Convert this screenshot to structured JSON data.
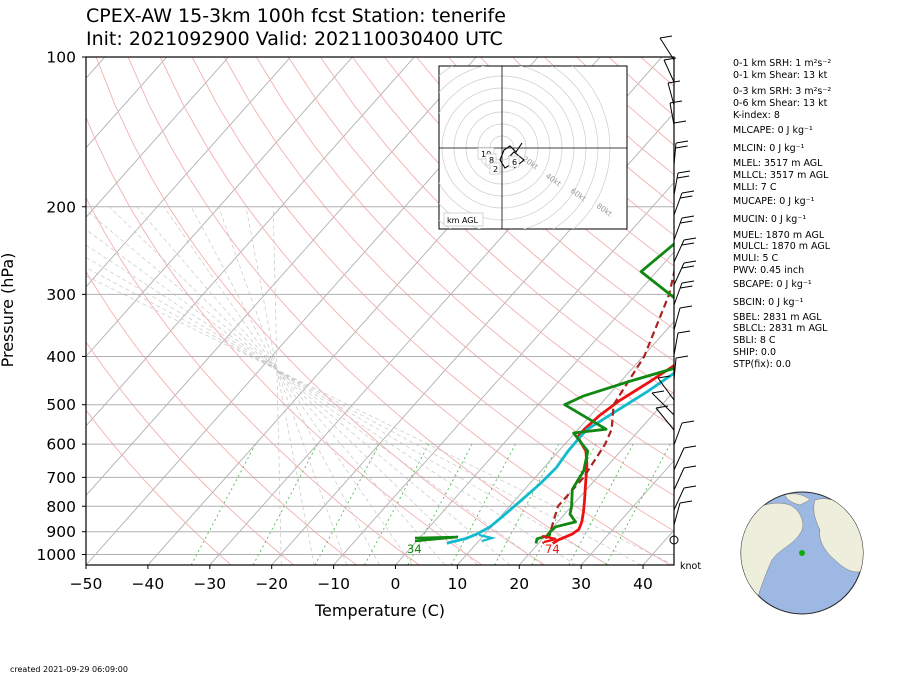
{
  "header": {
    "title_line1": "CPEX-AW 15-3km  100h fcst  Station: tenerife",
    "title_line2": "Init: 2021092900  Valid: 2021100304​00 UTC"
  },
  "chart_data": {
    "type": "skew-t log-p sounding",
    "xlabel": "Temperature (C)",
    "ylabel": "Pressure (hPa)",
    "xlim": [
      -50,
      45
    ],
    "ylim": [
      1050,
      100
    ],
    "x_ticks": [
      -50,
      -40,
      -30,
      -20,
      -10,
      0,
      10,
      20,
      30,
      40
    ],
    "y_ticks": [
      100,
      200,
      300,
      400,
      500,
      600,
      700,
      800,
      900,
      1000
    ],
    "y_scale": "log",
    "grid": true,
    "series": [
      {
        "name": "temperature",
        "color": "#ee1111",
        "points": [
          [
            21.2,
            100
          ],
          [
            22.8,
            120
          ],
          [
            24.0,
            140
          ],
          [
            24.6,
            160
          ],
          [
            24.8,
            180
          ],
          [
            25.0,
            200
          ],
          [
            24.5,
            230
          ],
          [
            22.5,
            270
          ],
          [
            20.8,
            300
          ],
          [
            19.5,
            340
          ],
          [
            18.2,
            380
          ],
          [
            16.2,
            420
          ],
          [
            14.7,
            450
          ],
          [
            12.6,
            490
          ],
          [
            11.5,
            525
          ],
          [
            11.0,
            560
          ],
          [
            11.0,
            580
          ],
          [
            14.4,
            620
          ],
          [
            16.5,
            660
          ],
          [
            19.0,
            720
          ],
          [
            21.3,
            780
          ],
          [
            22.7,
            820
          ],
          [
            23.9,
            860
          ],
          [
            24.5,
            890
          ],
          [
            24.1,
            910
          ],
          [
            22.7,
            935
          ],
          [
            22.3,
            950
          ]
        ]
      },
      {
        "name": "dewpoint",
        "color": "#11bbcc",
        "points": [
          [
            22.3,
            100
          ],
          [
            21.6,
            120
          ],
          [
            20.8,
            140
          ],
          [
            20.8,
            160
          ],
          [
            20.9,
            180
          ],
          [
            21.0,
            200
          ],
          [
            20.9,
            230
          ],
          [
            20.3,
            270
          ],
          [
            19.8,
            300
          ],
          [
            19.5,
            340
          ],
          [
            18.8,
            380
          ],
          [
            18.0,
            420
          ],
          [
            15.8,
            470
          ],
          [
            13.3,
            520
          ],
          [
            11.5,
            560
          ],
          [
            11.4,
            580
          ],
          [
            11.5,
            620
          ],
          [
            12.0,
            670
          ],
          [
            11.7,
            720
          ],
          [
            11.0,
            780
          ],
          [
            10.3,
            840
          ],
          [
            9.8,
            880
          ],
          [
            8.7,
            910
          ],
          [
            7.5,
            930
          ],
          [
            5.6,
            945
          ],
          [
            5.2,
            950
          ]
        ]
      },
      {
        "name": "parcel",
        "color": "#aa2222",
        "points": [
          [
            -16.8,
            120
          ],
          [
            -4.1,
            200
          ],
          [
            5.3,
            300
          ],
          [
            10.2,
            400
          ],
          [
            12.2,
            500
          ],
          [
            15.4,
            560
          ],
          [
            16.5,
            600
          ],
          [
            17.8,
            700
          ],
          [
            17.8,
            800
          ],
          [
            20.0,
            890
          ],
          [
            20.7,
            950
          ]
        ]
      },
      {
        "name": "wet-bulb",
        "color": "#118811",
        "points": [
          [
            -9.3,
            100
          ],
          [
            -7.8,
            130
          ],
          [
            -4.0,
            150
          ],
          [
            -1.6,
            180
          ],
          [
            0.2,
            200
          ],
          [
            -0.8,
            230
          ],
          [
            -2.5,
            270
          ],
          [
            7.9,
            310
          ],
          [
            15.4,
            330
          ],
          [
            17.1,
            380
          ],
          [
            17.3,
            420
          ],
          [
            11.2,
            450
          ],
          [
            6.1,
            480
          ],
          [
            4.3,
            500
          ],
          [
            14.5,
            560
          ],
          [
            9.8,
            570
          ],
          [
            14.7,
            620
          ],
          [
            16.9,
            680
          ],
          [
            17.7,
            740
          ],
          [
            20.0,
            800
          ],
          [
            20.9,
            830
          ],
          [
            22.9,
            860
          ],
          [
            20.4,
            880
          ],
          [
            20.2,
            900
          ],
          [
            20.6,
            915
          ],
          [
            19.1,
            930
          ],
          [
            19.6,
            950
          ]
        ]
      }
    ],
    "surface_labels": [
      {
        "text": "34",
        "color": "#118811"
      },
      {
        "text": "74",
        "color": "#ee1111"
      }
    ],
    "hodograph": {
      "ring_labels": [
        "20kt",
        "40kt",
        "60kt",
        "80kt"
      ],
      "height_labels": [
        "10",
        "8",
        "6",
        "2"
      ],
      "legend": "km AGL"
    },
    "wind_units": "knot"
  },
  "indices": [
    "0-1 km SRH: 1 m²s⁻²",
    "0-1 km Shear: 13 kt",
    "0-3 km SRH: 3 m²s⁻²",
    "0-6 km Shear: 13 kt",
    "K-index: 8",
    "MLCAPE: 0 J kg⁻¹",
    "MLCIN: 0 J kg⁻¹",
    "MLEL: 3517 m AGL",
    "MLLCL: 3517 m AGL",
    "MLLI: 7 C",
    "MUCAPE: 0 J kg⁻¹",
    "MUCIN: 0 J kg⁻¹",
    "MUEL: 1870 m AGL",
    "MULCL: 1870 m AGL",
    "MULI: 5 C",
    "PWV: 0.45 inch",
    "SBCAPE: 0 J kg⁻¹",
    "SBCIN: 0 J kg⁻¹",
    "SBEL: 2831 m AGL",
    "SBLCL: 2831 m AGL",
    "SBLI: 8 C",
    "SHIP: 0.0",
    "STP(fix): 0.0"
  ],
  "footer": {
    "created": "created 2021-09-29 06:09:00"
  },
  "colors": {
    "temperature": "#ee1111",
    "dewpoint": "#11bbcc",
    "parcel": "#aa2222",
    "wet_bulb": "#118811",
    "dry_adiabat": "#f4b0b0",
    "mixing_ratio": "#55bb55",
    "isotherm": "#b0b0b0",
    "globe_ocean": "#9db8e3",
    "globe_land": "#eeeedd"
  },
  "icons": {
    "globe": "locator-globe-icon",
    "station_marker": "station-dot-icon"
  }
}
